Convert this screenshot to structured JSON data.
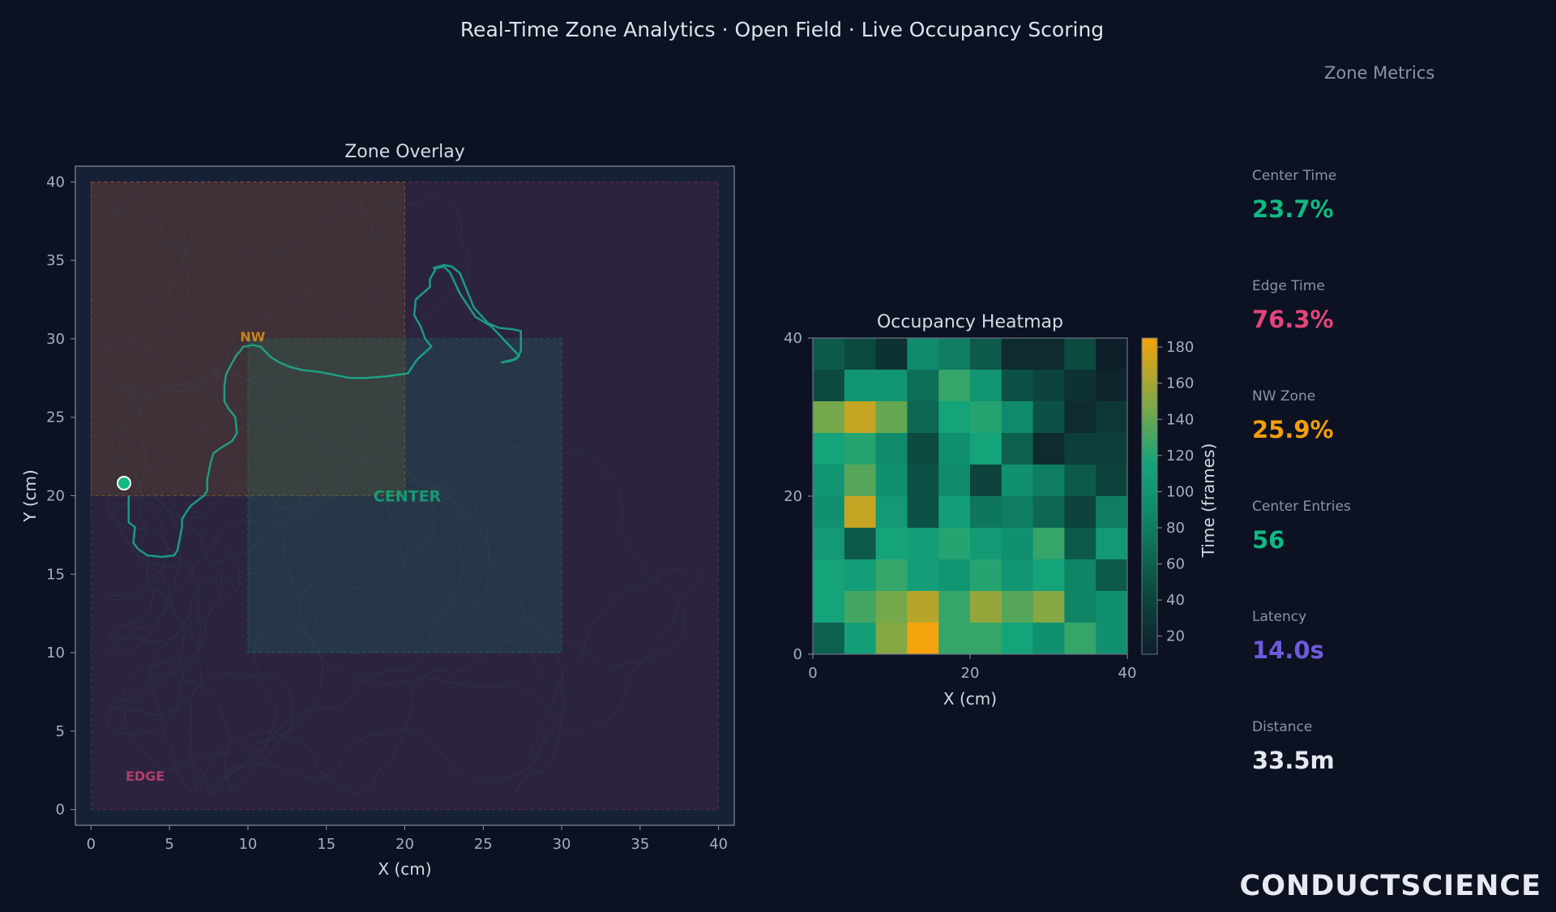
{
  "title": "Real-Time Zone Analytics · Open Field · Live Occupancy Scoring",
  "chart_data": [
    {
      "type": "scatter",
      "title": "Zone Overlay",
      "xlabel": "X (cm)",
      "ylabel": "Y (cm)",
      "xlim": [
        -1,
        41
      ],
      "ylim": [
        -1,
        41
      ],
      "xticks": [
        "0",
        "5",
        "10",
        "15",
        "20",
        "25",
        "30",
        "35",
        "40"
      ],
      "yticks": [
        "0",
        "5",
        "10",
        "15",
        "20",
        "25",
        "30",
        "35",
        "40"
      ],
      "zones": [
        {
          "name": "EDGE",
          "x0": 0,
          "x1": 40,
          "y0": 0,
          "y1": 40,
          "color": "#e0457b",
          "label_x": 2.2,
          "label_y": 2.2
        },
        {
          "name": "NW",
          "x0": 0,
          "x1": 20,
          "y0": 20,
          "y1": 40,
          "color": "#f59e0b",
          "label_x": 9.5,
          "label_y": 30.2
        },
        {
          "name": "CENTER",
          "x0": 10,
          "x1": 30,
          "y0": 10,
          "y1": 30,
          "color": "#10b981",
          "label_x": 18,
          "label_y": 20
        }
      ],
      "trail": [
        [
          21.8,
          34.5
        ],
        [
          22.5,
          34.7
        ],
        [
          23,
          34.6
        ],
        [
          23.5,
          34.2
        ],
        [
          24,
          33
        ],
        [
          24.4,
          32
        ],
        [
          25.3,
          31
        ],
        [
          26,
          30.7
        ],
        [
          26.9,
          30.6
        ],
        [
          27.4,
          30.5
        ],
        [
          27.4,
          30.1
        ],
        [
          27.4,
          29.2
        ],
        [
          27.1,
          28.7
        ],
        [
          26.6,
          28.6
        ],
        [
          26.2,
          28.5
        ],
        [
          26.8,
          28.6
        ],
        [
          27.3,
          28.9
        ],
        [
          25.5,
          30.8
        ],
        [
          24.5,
          31.4
        ],
        [
          23.5,
          32.9
        ],
        [
          22.9,
          34.2
        ],
        [
          22.5,
          34.6
        ],
        [
          22,
          34.5
        ],
        [
          21.6,
          33.8
        ],
        [
          21.6,
          33.3
        ],
        [
          20.7,
          32.5
        ],
        [
          20.6,
          31.5
        ],
        [
          21,
          30.8
        ],
        [
          21.3,
          30
        ],
        [
          21.7,
          29.5
        ],
        [
          20.8,
          28.7
        ],
        [
          20.4,
          28.1
        ],
        [
          20.2,
          27.8
        ],
        [
          19.5,
          27.7
        ],
        [
          18.8,
          27.6
        ],
        [
          17.5,
          27.5
        ],
        [
          16.5,
          27.5
        ],
        [
          15.5,
          27.7
        ],
        [
          14.5,
          27.9
        ],
        [
          13.5,
          28
        ],
        [
          12.7,
          28.2
        ],
        [
          12,
          28.5
        ],
        [
          11.5,
          28.8
        ],
        [
          10.8,
          29.5
        ],
        [
          10.3,
          29.6
        ],
        [
          9.7,
          29.5
        ],
        [
          9.5,
          29.2
        ],
        [
          9.3,
          29
        ],
        [
          8.9,
          28.3
        ],
        [
          8.6,
          27.7
        ],
        [
          8.5,
          27
        ],
        [
          8.5,
          26.5
        ],
        [
          8.5,
          26
        ],
        [
          8.8,
          25.5
        ],
        [
          9.2,
          25
        ],
        [
          9.3,
          24
        ],
        [
          9,
          23.5
        ],
        [
          8.2,
          23
        ],
        [
          7.8,
          22.7
        ],
        [
          7.6,
          22
        ],
        [
          7.5,
          21.5
        ],
        [
          7.4,
          21
        ],
        [
          7.4,
          20.3
        ],
        [
          7.2,
          20
        ],
        [
          6.4,
          19.4
        ],
        [
          6.1,
          19
        ],
        [
          5.8,
          18.5
        ],
        [
          5.8,
          18
        ],
        [
          5.6,
          17
        ],
        [
          5.5,
          16.5
        ],
        [
          5.3,
          16.2
        ],
        [
          4.5,
          16.1
        ],
        [
          3.6,
          16.2
        ],
        [
          3,
          16.6
        ],
        [
          2.7,
          17
        ],
        [
          2.8,
          18
        ],
        [
          2.4,
          18.3
        ],
        [
          2.4,
          19.4
        ],
        [
          2.4,
          20
        ]
      ],
      "marker": {
        "x": 2.1,
        "y": 20.8
      }
    },
    {
      "type": "heatmap",
      "title": "Occupancy Heatmap",
      "xlabel": "X (cm)",
      "xticks": [
        "0",
        "20",
        "40"
      ],
      "yticks": [
        "0",
        "20",
        "40"
      ],
      "xlim": [
        0,
        40
      ],
      "ylim": [
        0,
        40
      ],
      "colorbar_label": "Time (frames)",
      "colorbar_ticks": [
        "20",
        "40",
        "60",
        "80",
        "100",
        "120",
        "140",
        "160",
        "180"
      ],
      "vmin": 10,
      "vmax": 185,
      "grid_rows_top_to_bottom": [
        [
          55,
          45,
          25,
          90,
          80,
          55,
          20,
          20,
          45,
          10
        ],
        [
          45,
          100,
          100,
          70,
          125,
          100,
          50,
          40,
          25,
          15
        ],
        [
          145,
          170,
          140,
          65,
          115,
          120,
          90,
          50,
          20,
          30
        ],
        [
          115,
          120,
          90,
          45,
          95,
          115,
          60,
          20,
          35,
          35
        ],
        [
          100,
          135,
          95,
          50,
          90,
          40,
          95,
          80,
          55,
          40
        ],
        [
          95,
          170,
          105,
          50,
          110,
          75,
          80,
          65,
          40,
          80
        ],
        [
          105,
          55,
          115,
          110,
          120,
          105,
          95,
          125,
          55,
          105
        ],
        [
          115,
          110,
          125,
          110,
          100,
          120,
          100,
          115,
          85,
          55
        ],
        [
          115,
          130,
          145,
          165,
          125,
          155,
          135,
          150,
          85,
          95
        ],
        [
          60,
          110,
          150,
          185,
          125,
          125,
          115,
          95,
          125,
          95
        ]
      ]
    }
  ],
  "metrics": {
    "title": "Zone Metrics",
    "items": [
      {
        "label": "Center Time",
        "value": "23.7%",
        "color": "#10b981"
      },
      {
        "label": "Edge Time",
        "value": "76.3%",
        "color": "#e0457b"
      },
      {
        "label": "NW Zone",
        "value": "25.9%",
        "color": "#f59e0b"
      },
      {
        "label": "Center Entries",
        "value": "56",
        "color": "#10b981"
      },
      {
        "label": "Latency",
        "value": "14.0s",
        "color": "#6d5bdc"
      },
      {
        "label": "Distance",
        "value": "33.5m",
        "color": "#e5e9f0"
      }
    ]
  },
  "brand": "CONDUCTSCIENCE"
}
